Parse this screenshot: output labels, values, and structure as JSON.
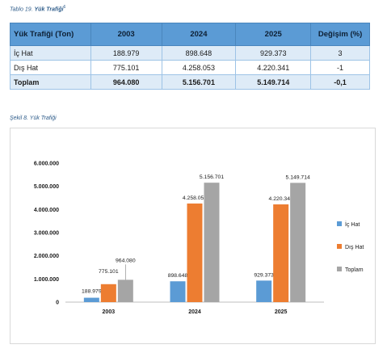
{
  "table_caption": {
    "prefix": "Tablo 19.",
    "title": "Yük Trafiği",
    "footnote": "6"
  },
  "table": {
    "headers": [
      "Yük Trafiği (Ton)",
      "2003",
      "2024",
      "2025",
      "Değişim (%)"
    ],
    "rows": [
      [
        "İç Hat",
        "188.979",
        "898.648",
        "929.373",
        "3"
      ],
      [
        "Dış Hat",
        "775.101",
        "4.258.053",
        "4.220.341",
        "-1"
      ],
      [
        "Toplam",
        "964.080",
        "5.156.701",
        "5.149.714",
        "-0,1"
      ]
    ]
  },
  "chart_caption": "Şekil 8. Yük Trafiği",
  "chart_data": {
    "type": "bar",
    "categories": [
      "2003",
      "2024",
      "2025"
    ],
    "series": [
      {
        "name": "İç Hat",
        "values": [
          188979,
          898648,
          929373
        ],
        "labels": [
          "188.979",
          "898.648",
          "929.373"
        ],
        "color": "#5b9bd5"
      },
      {
        "name": "Dış Hat",
        "values": [
          775101,
          4258053,
          4220341
        ],
        "labels": [
          "775.101",
          "4.258.053",
          "4.220.341"
        ],
        "color": "#ed7d31"
      },
      {
        "name": "Toplam",
        "values": [
          964080,
          5156701,
          5149714
        ],
        "labels": [
          "964.080",
          "5.156.701",
          "5.149.714"
        ],
        "color": "#a5a5a5"
      }
    ],
    "yticks": [
      0,
      1000000,
      2000000,
      3000000,
      4000000,
      5000000,
      6000000
    ],
    "ytick_labels": [
      "0",
      "1.000.000",
      "2.000.000",
      "3.000.000",
      "4.000.000",
      "5.000.000",
      "6.000.000"
    ],
    "ylim": [
      0,
      6000000
    ],
    "grid": false,
    "legend_position": "right"
  }
}
